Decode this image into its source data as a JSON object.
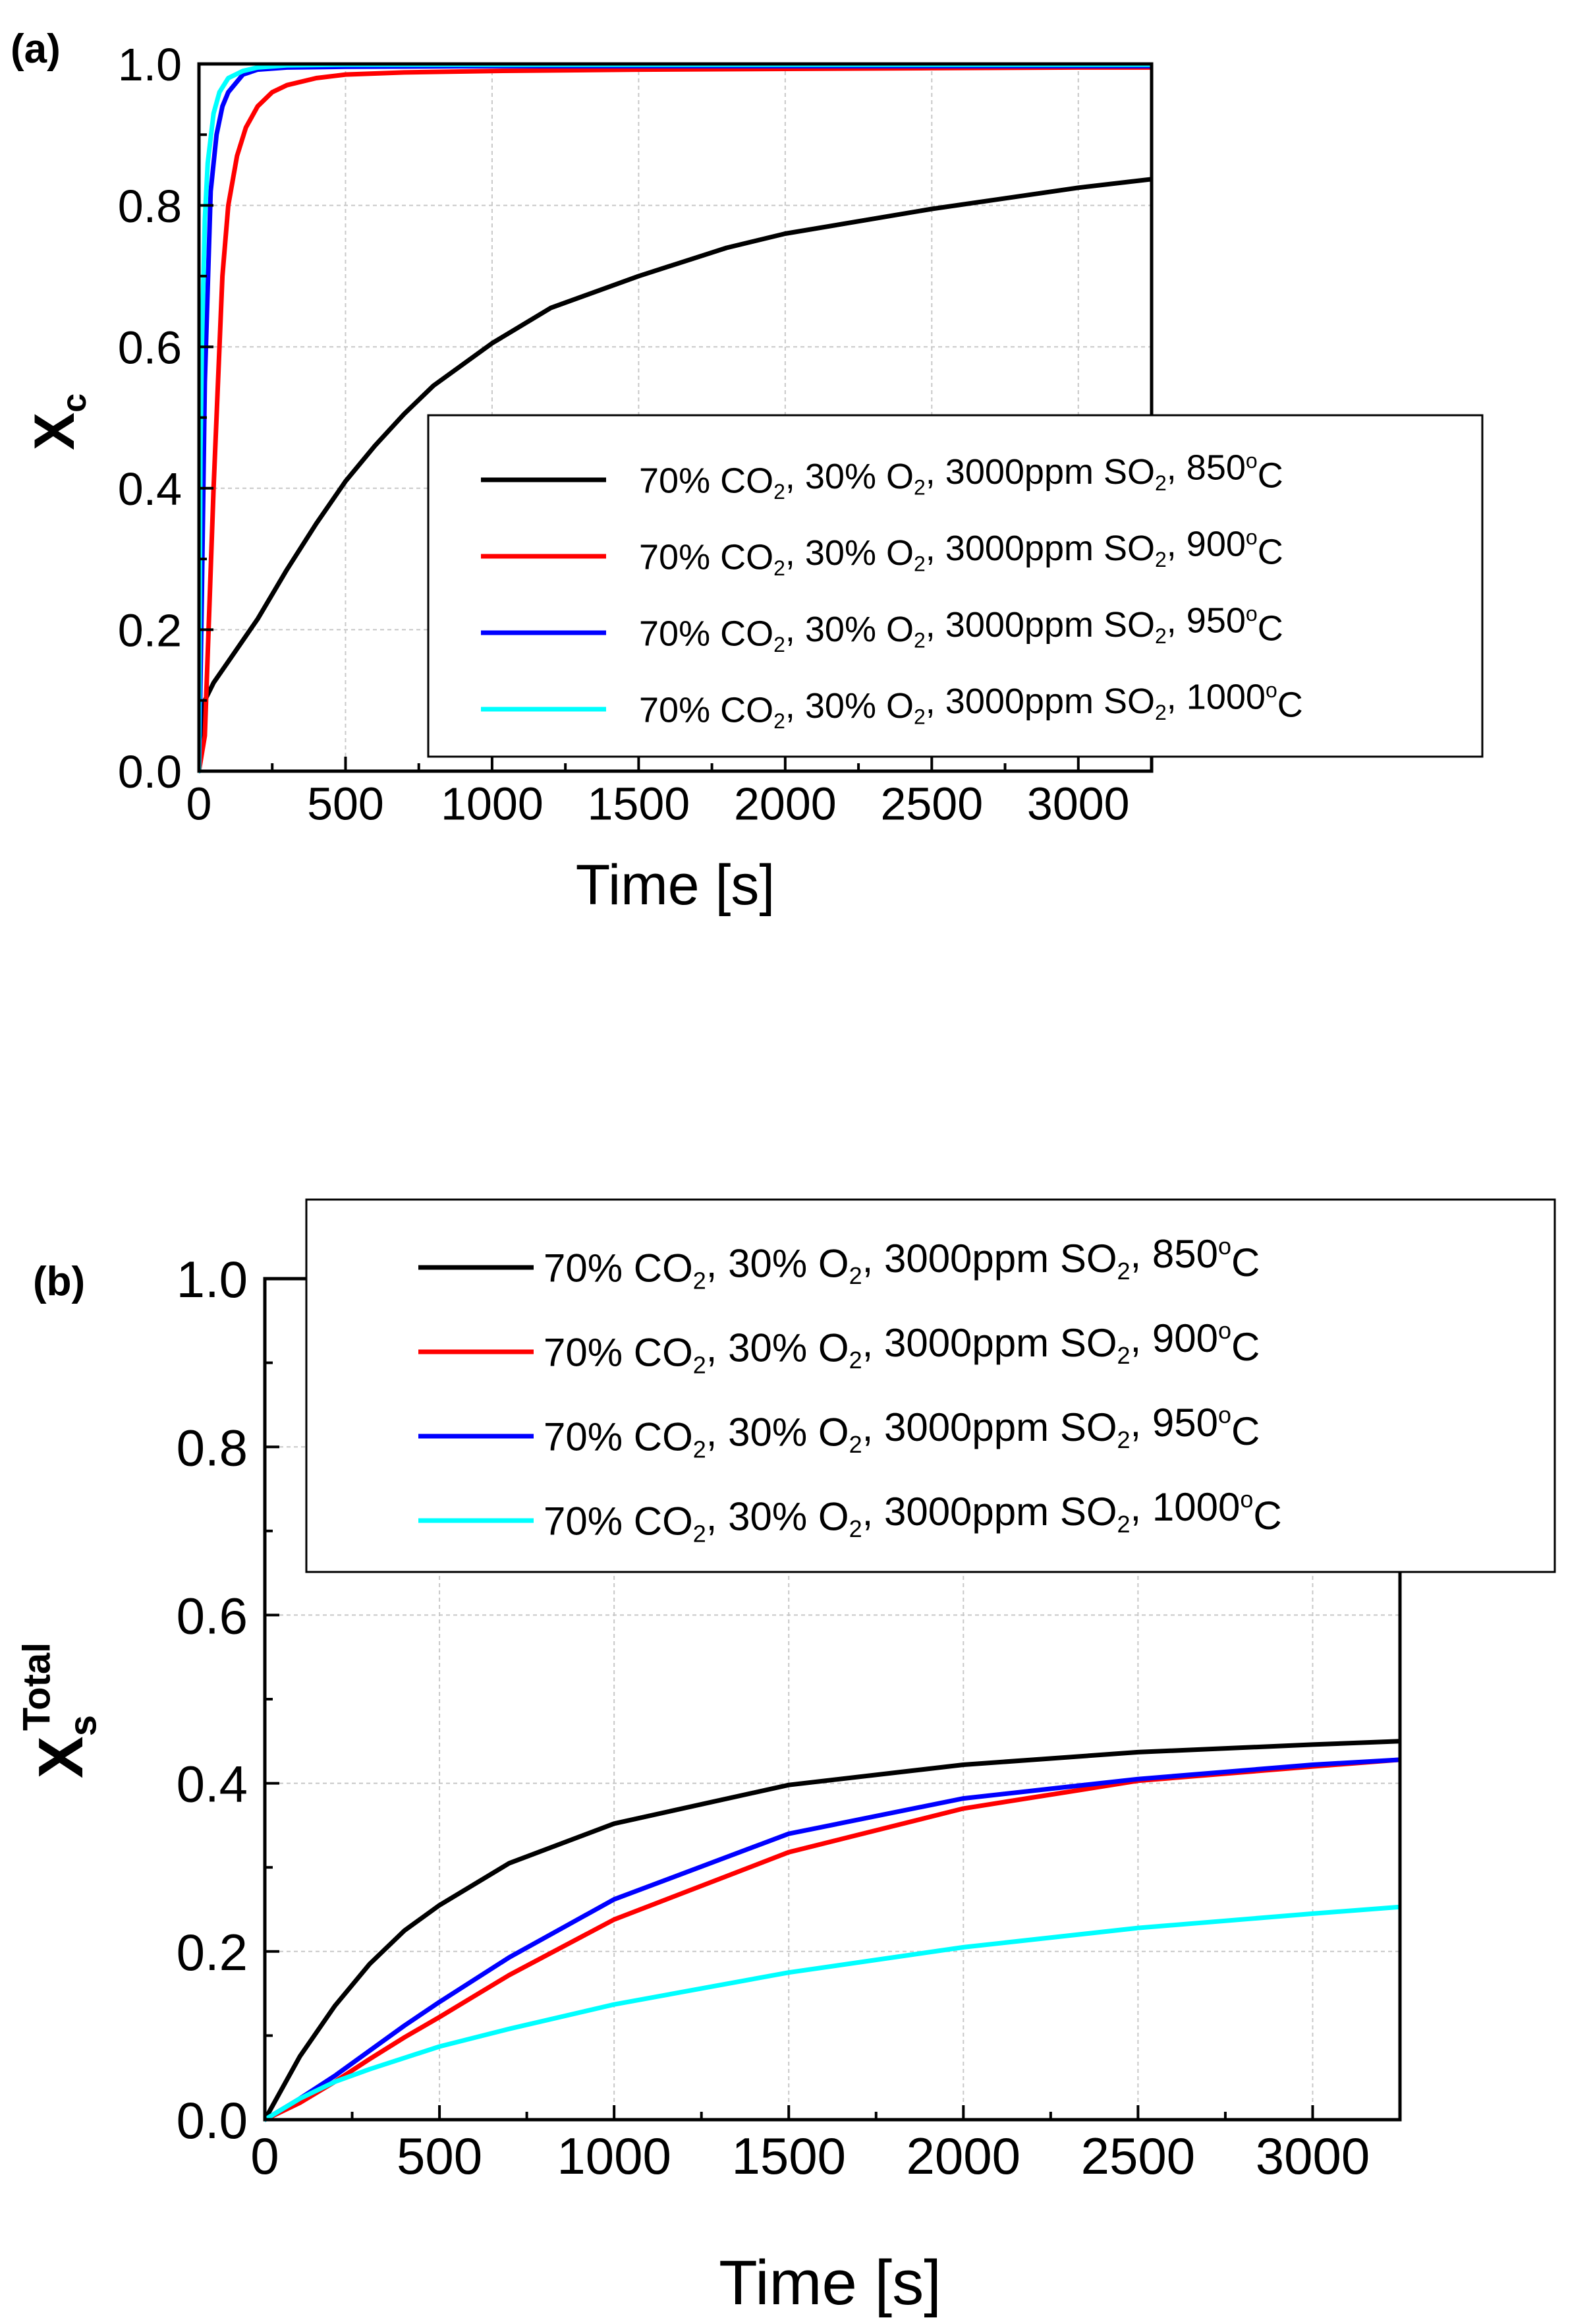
{
  "chart_data": [
    {
      "type": "line",
      "panel": "(a)",
      "xlabel": "Time [s]",
      "ylabel_main": "X",
      "ylabel_sub": "c",
      "ylabel_sup": "",
      "xlim": [
        0,
        3250
      ],
      "ylim": [
        0,
        1.0
      ],
      "xticks": [
        0,
        500,
        1000,
        1500,
        2000,
        2500,
        3000
      ],
      "yticks": [
        0.0,
        0.2,
        0.4,
        0.6,
        0.8,
        1.0
      ],
      "xtick_labels": [
        "0",
        "500",
        "1000",
        "1500",
        "2000",
        "2500",
        "3000"
      ],
      "ytick_labels": [
        "0.0",
        "0.2",
        "0.4",
        "0.6",
        "0.8",
        "1.0"
      ],
      "grid": true,
      "legend_position": "center-right",
      "series": [
        {
          "name": "70% CO2, 30% O2, 3000ppm SO2, 850oC",
          "legend": {
            "a": "70% CO",
            "b": "2",
            "c": ", 30% O",
            "d": "2",
            "e": ", 3000ppm SO",
            "f": "2",
            "g": ", 850",
            "h": "o",
            "i": "C"
          },
          "color": "#000000",
          "x": [
            0,
            20,
            50,
            100,
            200,
            300,
            400,
            500,
            600,
            700,
            800,
            1000,
            1200,
            1500,
            1800,
            2000,
            2500,
            3000,
            3250
          ],
          "y": [
            0,
            0.1,
            0.125,
            0.155,
            0.215,
            0.285,
            0.35,
            0.41,
            0.46,
            0.505,
            0.545,
            0.605,
            0.655,
            0.7,
            0.74,
            0.76,
            0.795,
            0.825,
            0.837
          ]
        },
        {
          "name": "70% CO2, 30% O2, 3000ppm SO2, 900oC",
          "legend": {
            "a": "70% CO",
            "b": "2",
            "c": ", 30% O",
            "d": "2",
            "e": ", 3000ppm SO",
            "f": "2",
            "g": ", 900",
            "h": "o",
            "i": "C"
          },
          "color": "#ff0000",
          "x": [
            0,
            20,
            50,
            80,
            100,
            130,
            160,
            200,
            250,
            300,
            400,
            500,
            700,
            1000,
            1500,
            2000,
            2500,
            3000,
            3250
          ],
          "y": [
            0,
            0.05,
            0.4,
            0.7,
            0.8,
            0.87,
            0.91,
            0.94,
            0.96,
            0.97,
            0.98,
            0.985,
            0.988,
            0.99,
            0.992,
            0.993,
            0.994,
            0.995,
            0.995
          ]
        },
        {
          "name": "70% CO2, 30% O2, 3000ppm SO2, 950oC",
          "legend": {
            "a": "70% CO",
            "b": "2",
            "c": ", 30% O",
            "d": "2",
            "e": ", 3000ppm SO",
            "f": "2",
            "g": ", 950",
            "h": "o",
            "i": "C"
          },
          "color": "#0000ff",
          "x": [
            0,
            10,
            20,
            40,
            60,
            80,
            100,
            150,
            200,
            300,
            500,
            1000,
            2000,
            3250
          ],
          "y": [
            0,
            0.25,
            0.55,
            0.82,
            0.9,
            0.94,
            0.96,
            0.985,
            0.992,
            0.995,
            0.996,
            0.997,
            0.997,
            0.997
          ]
        },
        {
          "name": "70% CO2, 30% O2, 3000ppm SO2, 1000oC",
          "legend": {
            "a": "70% CO",
            "b": "2",
            "c": ", 30% O",
            "d": "2",
            "e": ", 3000ppm SO",
            "f": "2",
            "g": ", 1000",
            "h": "o",
            "i": "C"
          },
          "color": "#00ffff",
          "x": [
            0,
            5,
            10,
            20,
            30,
            50,
            70,
            100,
            150,
            200,
            300,
            500,
            1000,
            2000,
            3250
          ],
          "y": [
            0,
            0.45,
            0.6,
            0.78,
            0.86,
            0.93,
            0.96,
            0.98,
            0.99,
            0.995,
            0.998,
            0.999,
            0.999,
            0.999,
            0.999
          ]
        }
      ]
    },
    {
      "type": "line",
      "panel": "(b)",
      "xlabel": "Time [s]",
      "ylabel_main": "X",
      "ylabel_sub": "s",
      "ylabel_sup": "Total",
      "xlim": [
        0,
        3250
      ],
      "ylim": [
        0,
        1.0
      ],
      "xticks": [
        0,
        500,
        1000,
        1500,
        2000,
        2500,
        3000
      ],
      "yticks": [
        0.0,
        0.2,
        0.4,
        0.6,
        0.8,
        1.0
      ],
      "xtick_labels": [
        "0",
        "500",
        "1000",
        "1500",
        "2000",
        "2500",
        "3000"
      ],
      "ytick_labels": [
        "0.0",
        "0.2",
        "0.4",
        "0.6",
        "0.8",
        "1.0"
      ],
      "grid": true,
      "legend_position": "top",
      "series": [
        {
          "name": "70% CO2, 30% O2, 3000ppm SO2, 850oC",
          "legend": {
            "a": "70% CO",
            "b": "2",
            "c": ", 30% O",
            "d": "2",
            "e": ", 3000ppm SO",
            "f": "2",
            "g": ", 850",
            "h": "o",
            "i": "C"
          },
          "color": "#000000",
          "x": [
            0,
            100,
            200,
            300,
            400,
            500,
            700,
            1000,
            1500,
            2000,
            2500,
            3000,
            3250
          ],
          "y": [
            0,
            0.075,
            0.135,
            0.185,
            0.225,
            0.255,
            0.305,
            0.352,
            0.398,
            0.422,
            0.437,
            0.446,
            0.45
          ]
        },
        {
          "name": "70% CO2, 30% O2, 3000ppm SO2, 900oC",
          "legend": {
            "a": "70% CO",
            "b": "2",
            "c": ", 30% O",
            "d": "2",
            "e": ", 3000ppm SO",
            "f": "2",
            "g": ", 900",
            "h": "o",
            "i": "C"
          },
          "color": "#ff0000",
          "x": [
            0,
            100,
            200,
            300,
            400,
            500,
            700,
            1000,
            1500,
            2000,
            2500,
            3000,
            3250
          ],
          "y": [
            0,
            0.02,
            0.045,
            0.072,
            0.098,
            0.122,
            0.172,
            0.238,
            0.318,
            0.37,
            0.403,
            0.42,
            0.428
          ]
        },
        {
          "name": "70% CO2, 30% O2, 3000ppm SO2, 950oC",
          "legend": {
            "a": "70% CO",
            "b": "2",
            "c": ", 30% O",
            "d": "2",
            "e": ", 3000ppm SO",
            "f": "2",
            "g": ", 950",
            "h": "o",
            "i": "C"
          },
          "color": "#0000ff",
          "x": [
            0,
            100,
            200,
            300,
            400,
            500,
            700,
            1000,
            1500,
            2000,
            2500,
            3000,
            3250
          ],
          "y": [
            0,
            0.025,
            0.052,
            0.082,
            0.112,
            0.14,
            0.193,
            0.262,
            0.34,
            0.382,
            0.405,
            0.422,
            0.428
          ]
        },
        {
          "name": "70% CO2, 30% O2, 3000ppm SO2, 1000oC",
          "legend": {
            "a": "70% CO",
            "b": "2",
            "c": ", 30% O",
            "d": "2",
            "e": ", 3000ppm SO",
            "f": "2",
            "g": ", 1000",
            "h": "o",
            "i": "C"
          },
          "color": "#00ffff",
          "x": [
            0,
            100,
            200,
            300,
            500,
            700,
            1000,
            1500,
            2000,
            2500,
            3000,
            3250
          ],
          "y": [
            0,
            0.025,
            0.045,
            0.06,
            0.087,
            0.108,
            0.137,
            0.175,
            0.205,
            0.228,
            0.245,
            0.253
          ]
        }
      ]
    }
  ]
}
